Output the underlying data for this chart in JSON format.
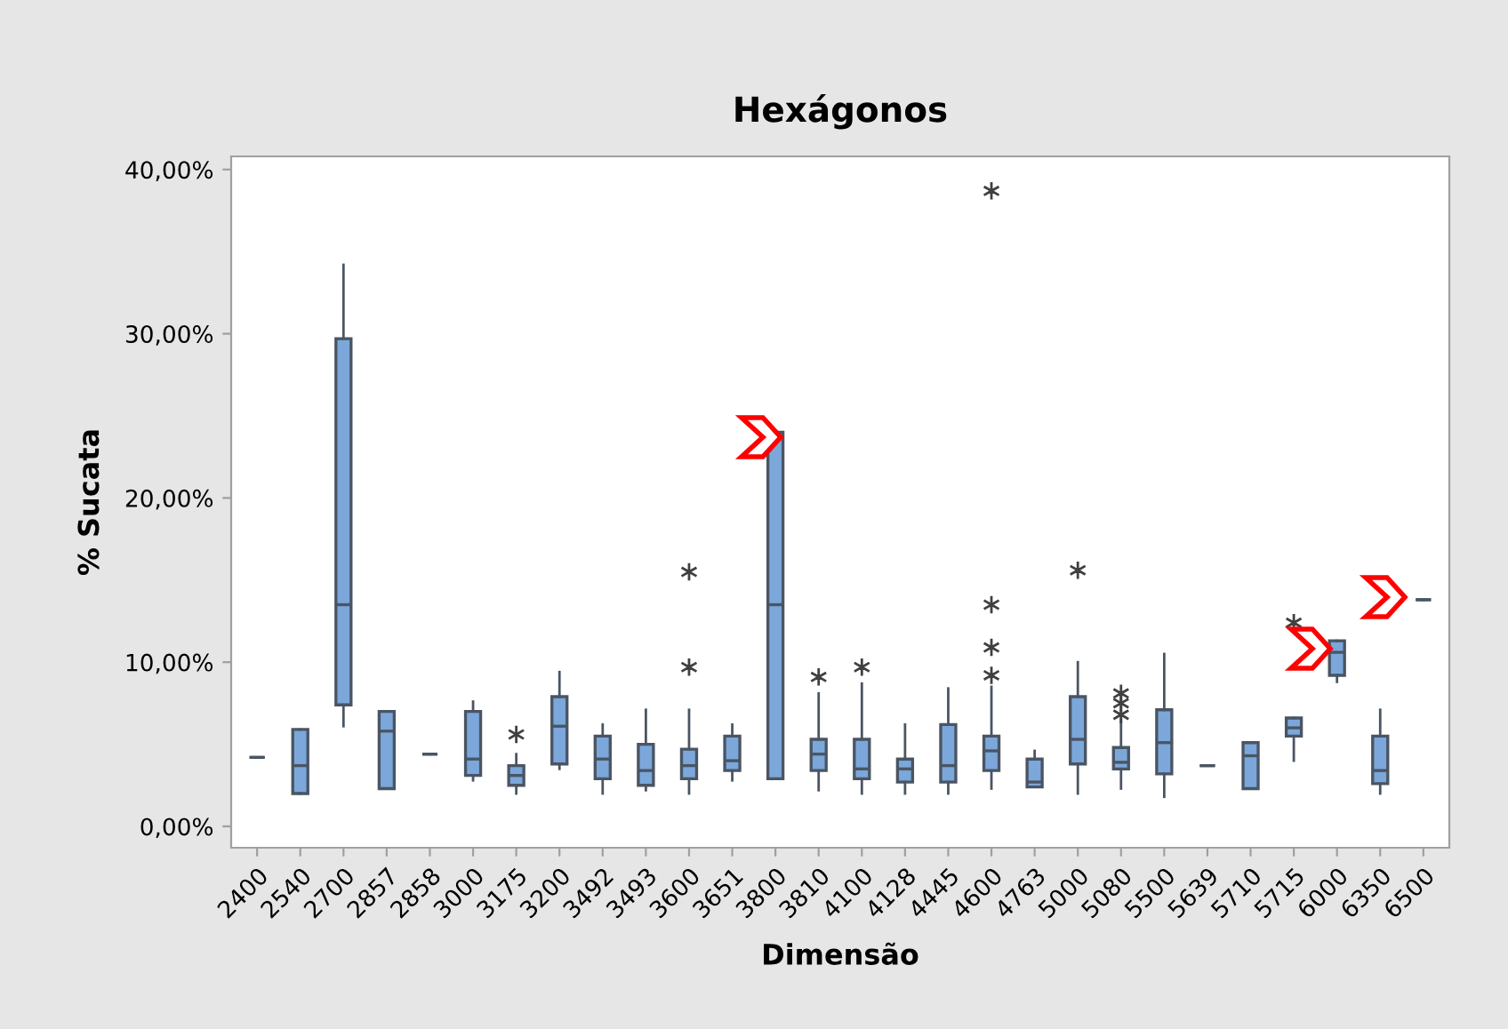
{
  "chart_data": {
    "type": "box",
    "title": "Hexágonos",
    "xlabel": "Dimensão",
    "ylabel": "% Sucata",
    "categories": [
      "2400",
      "2540",
      "2700",
      "2857",
      "2858",
      "3000",
      "3175",
      "3200",
      "3492",
      "3493",
      "3600",
      "3651",
      "3800",
      "3810",
      "4100",
      "4128",
      "4445",
      "4600",
      "4763",
      "5000",
      "5080",
      "5500",
      "5639",
      "5710",
      "5715",
      "6000",
      "6350",
      "6500"
    ],
    "colors": [
      "#4a5563",
      "#7ba7db",
      "#7ba7db",
      "#7ba7db",
      "#4a5563",
      "#7ba7db",
      "#7ba7db",
      "#7ba7db",
      "#7ba7db",
      "#7ba7db",
      "#7ba7db",
      "#7ba7db",
      "#7ba7db",
      "#7ba7db",
      "#7ba7db",
      "#7ba7db",
      "#7ba7db",
      "#7ba7db",
      "#7ba7db",
      "#7ba7db",
      "#7ba7db",
      "#7ba7db",
      "#4a5563",
      "#7ba7db",
      "#7ba7db",
      "#7ba7db",
      "#7ba7db",
      "#4a5563"
    ],
    "ylim": [
      -1.3,
      40.8
    ],
    "yticks": [
      {
        "value": 0,
        "label": "0,00%"
      },
      {
        "value": 10,
        "label": "10,00%"
      },
      {
        "value": 20,
        "label": "20,00%"
      },
      {
        "value": 30,
        "label": "30,00%"
      },
      {
        "value": 40,
        "label": "40,00%"
      }
    ],
    "grid": false,
    "boxes": [
      {
        "low": 4.2,
        "q1": 4.2,
        "median": 4.2,
        "q3": 4.2,
        "high": 4.2
      },
      {
        "low": 2.0,
        "q1": 2.0,
        "median": 3.7,
        "q3": 5.9,
        "high": 5.9
      },
      {
        "low": 6.1,
        "q1": 7.4,
        "median": 13.5,
        "q3": 29.7,
        "high": 34.2
      },
      {
        "low": 2.3,
        "q1": 2.3,
        "median": 5.8,
        "q3": 7.0,
        "high": 7.0
      },
      {
        "low": 4.4,
        "q1": 4.4,
        "median": 4.4,
        "q3": 4.4,
        "high": 4.4
      },
      {
        "low": 2.8,
        "q1": 3.1,
        "median": 4.1,
        "q3": 7.0,
        "high": 7.6
      },
      {
        "low": 2.0,
        "q1": 2.5,
        "median": 3.1,
        "q3": 3.7,
        "high": 4.4,
        "outliers": [
          5.6
        ]
      },
      {
        "low": 3.5,
        "q1": 3.8,
        "median": 6.1,
        "q3": 7.9,
        "high": 9.4
      },
      {
        "low": 2.0,
        "q1": 2.9,
        "median": 4.1,
        "q3": 5.5,
        "high": 6.2
      },
      {
        "low": 2.2,
        "q1": 2.5,
        "median": 3.4,
        "q3": 5.0,
        "high": 7.1
      },
      {
        "low": 2.0,
        "q1": 2.9,
        "median": 3.7,
        "q3": 4.7,
        "high": 7.1,
        "outliers": [
          9.7,
          15.5
        ]
      },
      {
        "low": 2.8,
        "q1": 3.4,
        "median": 4.0,
        "q3": 5.5,
        "high": 6.2
      },
      {
        "low": 2.9,
        "q1": 2.9,
        "median": 13.5,
        "q3": 24.0,
        "high": 24.0
      },
      {
        "low": 2.2,
        "q1": 3.4,
        "median": 4.4,
        "q3": 5.3,
        "high": 8.1,
        "outliers": [
          9.1
        ]
      },
      {
        "low": 2.0,
        "q1": 2.9,
        "median": 3.5,
        "q3": 5.3,
        "high": 8.7,
        "outliers": [
          9.7
        ]
      },
      {
        "low": 2.0,
        "q1": 2.7,
        "median": 3.5,
        "q3": 4.1,
        "high": 6.2
      },
      {
        "low": 2.0,
        "q1": 2.7,
        "median": 3.7,
        "q3": 6.2,
        "high": 8.4
      },
      {
        "low": 2.3,
        "q1": 3.4,
        "median": 4.6,
        "q3": 5.5,
        "high": 8.5,
        "outliers": [
          9.2,
          10.9,
          13.5,
          38.7
        ]
      },
      {
        "low": 2.4,
        "q1": 2.4,
        "median": 2.7,
        "q3": 4.1,
        "high": 4.6
      },
      {
        "low": 2.0,
        "q1": 3.8,
        "median": 5.3,
        "q3": 7.9,
        "high": 10.0,
        "outliers": [
          15.6
        ]
      },
      {
        "low": 2.3,
        "q1": 3.5,
        "median": 3.9,
        "q3": 4.8,
        "high": 6.5,
        "outliers": [
          6.8,
          7.5,
          8.1
        ]
      },
      {
        "low": 1.8,
        "q1": 3.2,
        "median": 5.1,
        "q3": 7.1,
        "high": 10.5
      },
      {
        "low": 3.7,
        "q1": 3.7,
        "median": 3.7,
        "q3": 3.7,
        "high": 3.7
      },
      {
        "low": 2.3,
        "q1": 2.3,
        "median": 4.3,
        "q3": 5.1,
        "high": 5.1
      },
      {
        "low": 4.0,
        "q1": 5.5,
        "median": 6.0,
        "q3": 6.6,
        "high": 6.6,
        "outliers": [
          12.4
        ]
      },
      {
        "low": 8.8,
        "q1": 9.2,
        "median": 10.6,
        "q3": 11.3,
        "high": 11.3
      },
      {
        "low": 2.0,
        "q1": 2.6,
        "median": 3.4,
        "q3": 5.5,
        "high": 7.1
      },
      {
        "low": 13.8,
        "q1": 13.8,
        "median": 13.8,
        "q3": 13.8,
        "high": 13.8
      }
    ]
  }
}
